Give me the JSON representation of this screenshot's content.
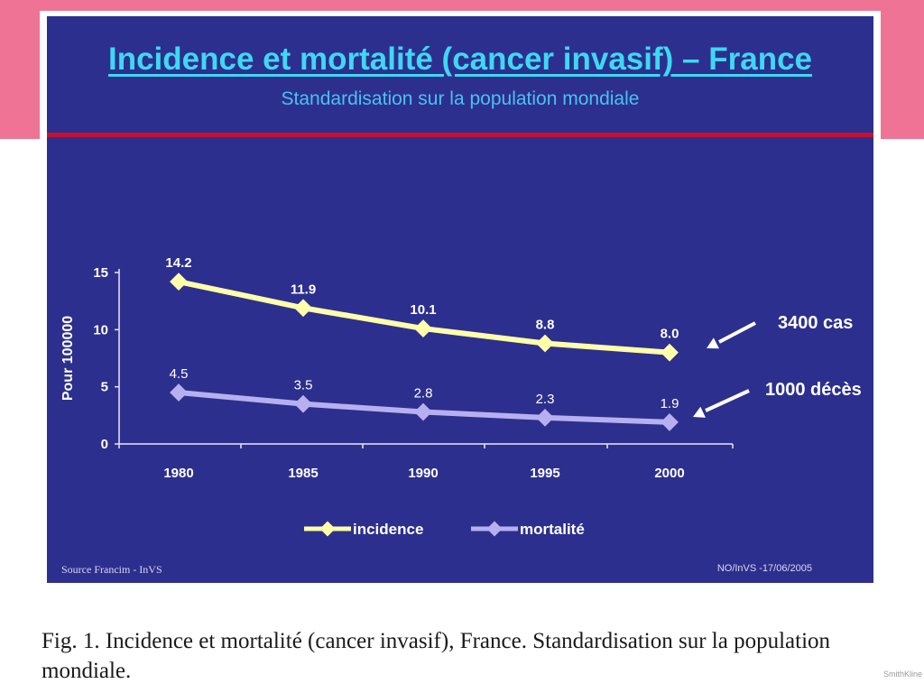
{
  "slide": {
    "title": "Incidence et mortalité (cancer invasif) – France",
    "subtitle": "Standardisation sur la population mondiale",
    "source": "Source Francim - InVS",
    "stamp": "NO/InVS -17/06/2005"
  },
  "annotations": {
    "incidence_note": "3400 cas",
    "mortality_note": "1000 décès"
  },
  "caption": "Fig. 1. Incidence et mortalité (cancer invasif), France. Standardisation sur la population mondiale.",
  "corner_text": "SmithKline",
  "colors": {
    "background": "#2d2f8e",
    "title": "#3ed8f2",
    "incidence": "#ffffaa",
    "mortality": "#b7b0f0",
    "pink_band": "#ef7394",
    "rule": "#c8102e"
  },
  "chart_data": {
    "type": "line",
    "title": "",
    "xlabel": "",
    "ylabel": "Pour 100000",
    "categories": [
      "1980",
      "1985",
      "1990",
      "1995",
      "2000"
    ],
    "yticks": [
      "0",
      "5",
      "10",
      "15"
    ],
    "ylim": [
      0,
      15
    ],
    "grid": false,
    "legend_position": "bottom",
    "series": [
      {
        "name": "incidence",
        "values": [
          14.2,
          11.9,
          10.1,
          8.8,
          8.0
        ],
        "labels": [
          "14.2",
          "11.9",
          "10.1",
          "8.8",
          "8.0"
        ]
      },
      {
        "name": "mortalité",
        "values": [
          4.5,
          3.5,
          2.8,
          2.3,
          1.9
        ],
        "labels": [
          "4.5",
          "3.5",
          "2.8",
          "2.3",
          "1.9"
        ]
      }
    ]
  }
}
